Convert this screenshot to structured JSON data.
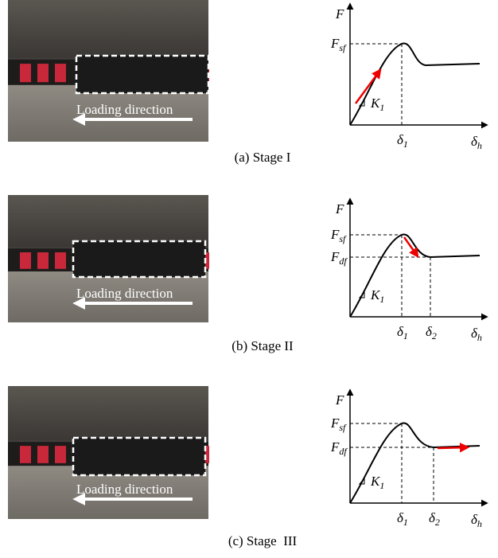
{
  "panels": [
    {
      "caption": "(a) Stage I",
      "photo_label": "Loading direction",
      "diagram": {
        "y_axis": "F",
        "x_axis": {
          "base": "δ",
          "sub": "h"
        },
        "stiffness": {
          "base": "K",
          "sub": "1"
        },
        "levels": [
          {
            "base": "F",
            "sub": "sf"
          }
        ],
        "displacements": [
          {
            "base": "δ",
            "sub": "1"
          }
        ]
      }
    },
    {
      "caption": "(b) Stage II",
      "photo_label": "Loading direction",
      "diagram": {
        "y_axis": "F",
        "x_axis": {
          "base": "δ",
          "sub": "h"
        },
        "stiffness": {
          "base": "K",
          "sub": "1"
        },
        "levels": [
          {
            "base": "F",
            "sub": "sf"
          },
          {
            "base": "F",
            "sub": "df"
          }
        ],
        "displacements": [
          {
            "base": "δ",
            "sub": "1"
          },
          {
            "base": "δ",
            "sub": "2"
          }
        ]
      }
    },
    {
      "caption": "(c) Stage  III",
      "photo_label": "Loading direction",
      "diagram": {
        "y_axis": "F",
        "x_axis": {
          "base": "δ",
          "sub": "h"
        },
        "stiffness": {
          "base": "K",
          "sub": "1"
        },
        "levels": [
          {
            "base": "F",
            "sub": "sf"
          },
          {
            "base": "F",
            "sub": "df"
          }
        ],
        "displacements": [
          {
            "base": "δ",
            "sub": "1"
          },
          {
            "base": "δ",
            "sub": "2"
          }
        ]
      }
    }
  ]
}
